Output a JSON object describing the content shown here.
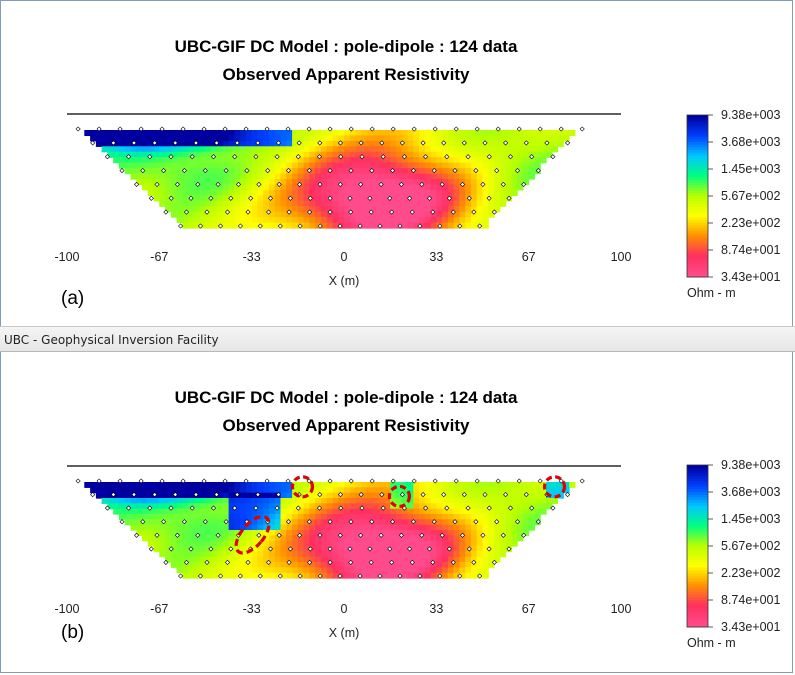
{
  "window_caption": "UBC - Geophysical Inversion Facility",
  "panels": [
    {
      "id": "a",
      "label": "(a)",
      "title": "UBC-GIF DC Model : pole-dipole : 124 data",
      "subtitle": "Observed Apparent Resistivity",
      "xlabel": "X (m)",
      "xticks": [
        "-100",
        "-67",
        "-33",
        "0",
        "33",
        "67",
        "100"
      ],
      "colorbar_labels": [
        "9.38e+003",
        "3.68e+003",
        "1.45e+003",
        "5.67e+002",
        "2.23e+002",
        "8.74e+001",
        "3.43e+001"
      ],
      "unit": "Ohm - m",
      "highlight_circles": []
    },
    {
      "id": "b",
      "label": "(b)",
      "title": "UBC-GIF DC Model : pole-dipole : 124 data",
      "subtitle": "Observed Apparent Resistivity",
      "xlabel": "X (m)",
      "xticks": [
        "-100",
        "-67",
        "-33",
        "0",
        "33",
        "67",
        "100"
      ],
      "colorbar_labels": [
        "9.38e+003",
        "3.68e+003",
        "1.45e+003",
        "5.67e+002",
        "2.23e+002",
        "8.74e+001",
        "3.43e+001"
      ],
      "unit": "Ohm - m",
      "highlight_circles": [
        {
          "x": -33,
          "level": 0.55,
          "kind": "ellipse"
        },
        {
          "x": -15,
          "level": 0.05,
          "kind": "circle"
        },
        {
          "x": 20,
          "level": 0.15,
          "kind": "circle"
        },
        {
          "x": 76,
          "level": 0.05,
          "kind": "circle"
        }
      ]
    }
  ],
  "chart_data": [
    {
      "type": "heatmap",
      "title": "UBC-GIF DC Model : pole-dipole : 124 data",
      "subtitle": "Observed Apparent Resistivity",
      "xlabel": "X (m)",
      "xlim": [
        -100,
        100
      ],
      "colorbar_unit": "Ohm - m",
      "colorbar_range": [
        34.3,
        9380
      ],
      "colorscale": [
        "#0000a0",
        "#0040ff",
        "#00c8ff",
        "#00ff80",
        "#b8ff00",
        "#ffff00",
        "#ff9000",
        "#ff3060",
        "#ff4b8c"
      ]
    },
    {
      "type": "heatmap",
      "title": "UBC-GIF DC Model : pole-dipole : 124 data",
      "subtitle": "Observed Apparent Resistivity",
      "xlabel": "X (m)",
      "xlim": [
        -100,
        100
      ],
      "colorbar_unit": "Ohm - m",
      "colorbar_range": [
        34.3,
        9380
      ],
      "colorscale": [
        "#0000a0",
        "#0040ff",
        "#00c8ff",
        "#00ff80",
        "#b8ff00",
        "#ffff00",
        "#ff9000",
        "#ff3060",
        "#ff4b8c"
      ]
    }
  ]
}
